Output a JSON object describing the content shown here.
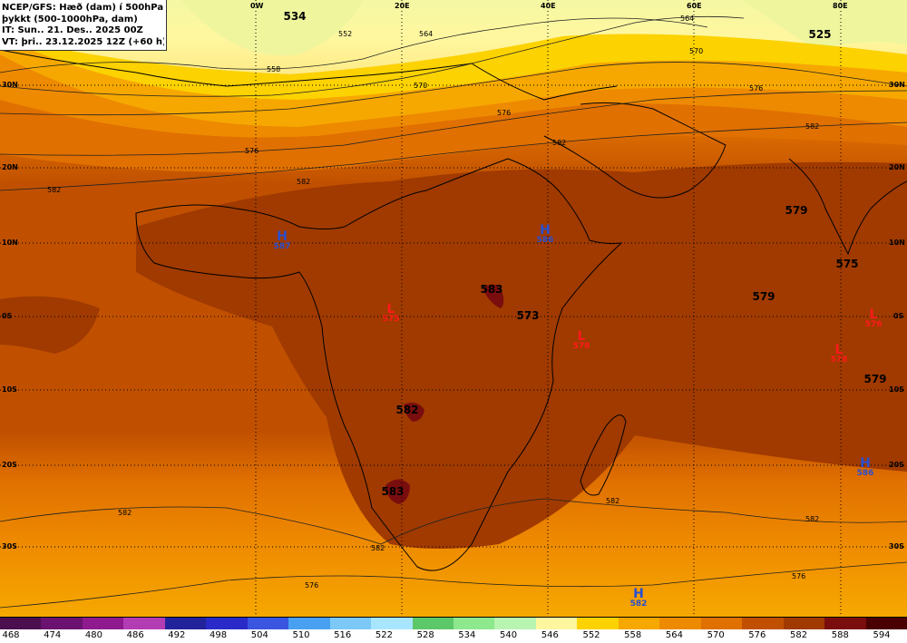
{
  "header": {
    "line1": "NCEP/GFS: Hæð (dam) í 500hPa og",
    "line2": "þykkt (500-1000hPa, dam)",
    "line3": "IT: Sun.. 21. Des.. 2025 00Z",
    "line4": "VT: þri.. 23.12.2025 12Z (+60 h)"
  },
  "lon_labels": [
    "0W",
    "20E",
    "40E",
    "60E",
    "80E"
  ],
  "lat_labels_left": [
    "30N",
    "20N",
    "10N",
    "0S",
    "10S",
    "20S",
    "30S"
  ],
  "lat_labels_right": [
    "30N",
    "20N",
    "10N",
    "0S",
    "10S",
    "20S",
    "30S"
  ],
  "big_labels": [
    "534",
    "525",
    "579",
    "575",
    "579",
    "573",
    "583",
    "582",
    "583",
    "579"
  ],
  "contour_labels": [
    "564",
    "552",
    "558",
    "570",
    "564",
    "576",
    "582",
    "576",
    "582",
    "570",
    "582",
    "582",
    "582",
    "576",
    "582",
    "582",
    "576",
    "576",
    "582"
  ],
  "systems": [
    {
      "type": "H",
      "value": "587",
      "color": "#2a4fd0"
    },
    {
      "type": "H",
      "value": "586",
      "color": "#2a4fd0"
    },
    {
      "type": "L",
      "value": "575",
      "color": "#ff1a1a"
    },
    {
      "type": "L",
      "value": "578",
      "color": "#ff1a1a"
    },
    {
      "type": "L",
      "value": "578",
      "color": "#ff1a1a"
    },
    {
      "type": "L",
      "value": "576",
      "color": "#ff1a1a"
    },
    {
      "type": "H",
      "value": "586",
      "color": "#2a4fd0"
    },
    {
      "type": "H",
      "value": "582",
      "color": "#2a4fd0"
    }
  ],
  "legend": {
    "ticks": [
      "468",
      "474",
      "480",
      "486",
      "492",
      "498",
      "504",
      "510",
      "516",
      "522",
      "528",
      "534",
      "540",
      "546",
      "552",
      "558",
      "564",
      "570",
      "576",
      "582",
      "588",
      "594"
    ],
    "colors": [
      "#4b0f4f",
      "#6b1270",
      "#8e1a8e",
      "#b23cb4",
      "#22229a",
      "#2a2ac8",
      "#3a55e0",
      "#4aa0f0",
      "#7cc8f8",
      "#a8e6ff",
      "#5dc86a",
      "#8ee88e",
      "#b8f5b0",
      "#fff7a0",
      "#fcd200",
      "#f6a800",
      "#ee8a00",
      "#e07000",
      "#c05000",
      "#a03a00",
      "#7a0d0d",
      "#4a0000"
    ]
  }
}
